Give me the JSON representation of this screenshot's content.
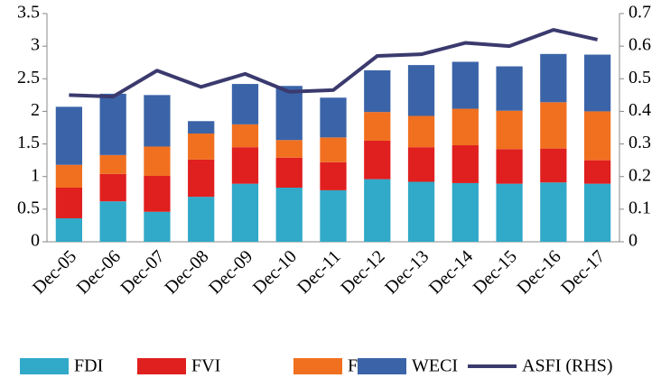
{
  "chart_data": {
    "type": "bar",
    "stacked": true,
    "categories": [
      "Dec-05",
      "Dec-06",
      "Dec-07",
      "Dec-08",
      "Dec-09",
      "Dec-10",
      "Dec-11",
      "Dec-12",
      "Dec-13",
      "Dec-14",
      "Dec-15",
      "Dec-16",
      "Dec-17"
    ],
    "series": [
      {
        "name": "FDI",
        "color": "#31a9c8",
        "values": [
          0.36,
          0.62,
          0.46,
          0.69,
          0.89,
          0.83,
          0.79,
          0.96,
          0.92,
          0.9,
          0.89,
          0.91,
          0.89
        ]
      },
      {
        "name": "FVI",
        "color": "#e01f1f",
        "values": [
          0.47,
          0.42,
          0.55,
          0.57,
          0.56,
          0.46,
          0.43,
          0.59,
          0.53,
          0.58,
          0.53,
          0.52,
          0.36
        ]
      },
      {
        "name": "FSI",
        "color": "#f07020",
        "values": [
          0.35,
          0.29,
          0.45,
          0.4,
          0.35,
          0.27,
          0.38,
          0.44,
          0.48,
          0.56,
          0.59,
          0.71,
          0.75
        ]
      },
      {
        "name": "WECI",
        "color": "#3b64a8",
        "values": [
          0.89,
          0.94,
          0.79,
          0.19,
          0.62,
          0.83,
          0.61,
          0.64,
          0.78,
          0.72,
          0.68,
          0.74,
          0.87
        ]
      },
      {
        "name": "ASFI (RHS)",
        "type": "line",
        "axis": "y2",
        "color": "#3b3a6e",
        "values": [
          0.45,
          0.445,
          0.525,
          0.475,
          0.515,
          0.46,
          0.465,
          0.57,
          0.575,
          0.61,
          0.6,
          0.65,
          0.62
        ]
      }
    ],
    "ylim": [
      0,
      3.5
    ],
    "yticks": [
      0,
      0.5,
      1,
      1.5,
      2,
      2.5,
      3,
      3.5
    ],
    "y2lim": [
      0,
      0.7
    ],
    "y2ticks": [
      0,
      0.1,
      0.2,
      0.3,
      0.4,
      0.5,
      0.6,
      0.7
    ],
    "grid": false,
    "legend": "bottom"
  }
}
